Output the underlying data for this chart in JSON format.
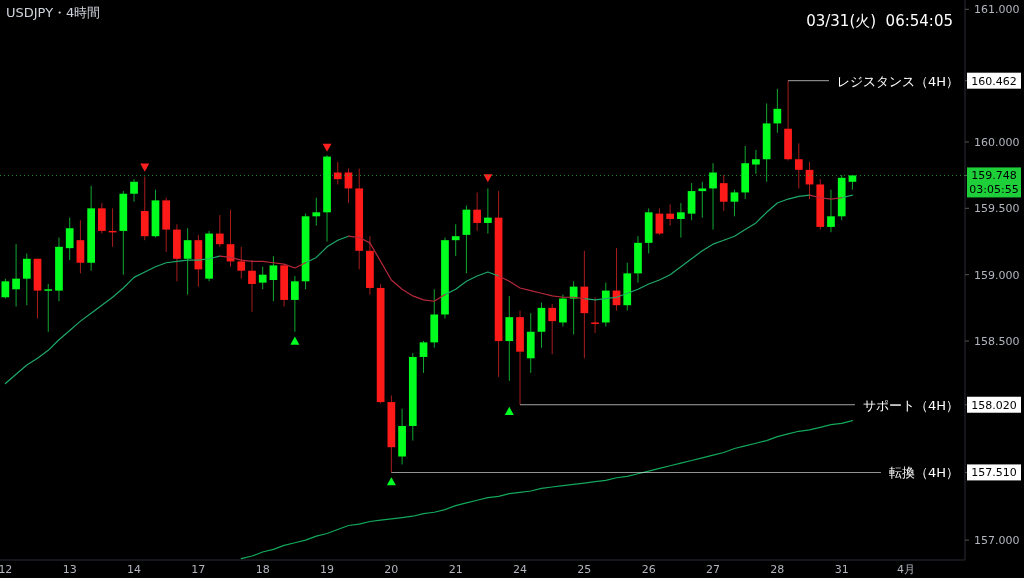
{
  "chart_data": {
    "type": "candlestick",
    "title": "USDJPY・4時間",
    "categories": [
      "12",
      null,
      null,
      null,
      null,
      null,
      "13",
      null,
      null,
      null,
      null,
      null,
      "14",
      null,
      null,
      null,
      null,
      null,
      "17",
      null,
      null,
      null,
      null,
      null,
      "18",
      null,
      null,
      null,
      null,
      null,
      "19",
      null,
      null,
      null,
      null,
      null,
      "20",
      null,
      null,
      null,
      null,
      null,
      "21",
      null,
      null,
      null,
      null,
      null,
      "24",
      null,
      null,
      null,
      null,
      null,
      "25",
      null,
      null,
      null,
      null,
      null,
      "26",
      null,
      null,
      null,
      null,
      null,
      "27",
      null,
      null,
      null,
      null,
      null,
      "28",
      null,
      null,
      null,
      null,
      null,
      "31",
      null,
      null,
      null,
      null,
      null,
      "4月",
      null,
      null,
      null,
      null,
      null
    ],
    "ohlc": [
      [
        158.83,
        158.97,
        158.82,
        158.95
      ],
      [
        158.89,
        159.23,
        158.76,
        158.97
      ],
      [
        158.97,
        159.16,
        158.77,
        159.12
      ],
      [
        159.12,
        159.12,
        158.67,
        158.88
      ],
      [
        158.88,
        158.93,
        158.57,
        158.89
      ],
      [
        158.88,
        159.28,
        158.8,
        159.21
      ],
      [
        159.2,
        159.43,
        159.11,
        159.35
      ],
      [
        159.26,
        159.41,
        159.01,
        159.09
      ],
      [
        159.09,
        159.67,
        159.03,
        159.5
      ],
      [
        159.5,
        159.54,
        159.31,
        159.33
      ],
      [
        159.33,
        159.5,
        159.21,
        159.32
      ],
      [
        159.33,
        159.63,
        159.0,
        159.61
      ],
      [
        159.61,
        159.72,
        159.55,
        159.7
      ],
      [
        159.48,
        159.74,
        159.26,
        159.29
      ],
      [
        159.29,
        159.64,
        159.28,
        159.56
      ],
      [
        159.56,
        159.58,
        159.17,
        159.34
      ],
      [
        159.34,
        159.38,
        158.95,
        159.12
      ],
      [
        159.12,
        159.35,
        158.85,
        159.26
      ],
      [
        159.26,
        159.3,
        158.91,
        159.04
      ],
      [
        158.97,
        159.33,
        158.95,
        159.31
      ],
      [
        159.31,
        159.45,
        159.21,
        159.23
      ],
      [
        159.23,
        159.49,
        159.06,
        159.1
      ],
      [
        159.1,
        159.21,
        158.97,
        159.03
      ],
      [
        159.03,
        159.11,
        158.72,
        158.93
      ],
      [
        158.94,
        159.06,
        158.89,
        159.0
      ],
      [
        158.96,
        159.14,
        158.8,
        159.07
      ],
      [
        159.07,
        159.08,
        158.76,
        158.81
      ],
      [
        158.81,
        158.99,
        158.57,
        158.95
      ],
      [
        158.95,
        159.46,
        158.89,
        159.44
      ],
      [
        159.44,
        159.58,
        159.37,
        159.47
      ],
      [
        159.47,
        159.9,
        159.25,
        159.89
      ],
      [
        159.77,
        159.85,
        159.68,
        159.72
      ],
      [
        159.77,
        159.8,
        159.54,
        159.65
      ],
      [
        159.65,
        159.8,
        159.04,
        159.18
      ],
      [
        159.18,
        159.29,
        158.85,
        158.9
      ],
      [
        158.9,
        158.93,
        158.03,
        158.04
      ],
      [
        158.04,
        158.09,
        157.51,
        157.7
      ],
      [
        157.63,
        157.99,
        157.57,
        157.86
      ],
      [
        157.86,
        158.41,
        157.75,
        158.38
      ],
      [
        158.38,
        158.5,
        158.26,
        158.49
      ],
      [
        158.49,
        158.89,
        158.45,
        158.7
      ],
      [
        158.7,
        159.28,
        158.67,
        159.26
      ],
      [
        159.26,
        159.38,
        159.14,
        159.29
      ],
      [
        159.3,
        159.52,
        159.01,
        159.49
      ],
      [
        159.49,
        159.62,
        159.33,
        159.39
      ],
      [
        159.39,
        159.65,
        159.31,
        159.43
      ],
      [
        159.43,
        159.63,
        158.23,
        158.5
      ],
      [
        158.5,
        158.84,
        158.2,
        158.68
      ],
      [
        158.68,
        158.73,
        158.02,
        158.42
      ],
      [
        158.37,
        158.71,
        158.26,
        158.57
      ],
      [
        158.57,
        158.79,
        158.45,
        158.75
      ],
      [
        158.75,
        158.78,
        158.4,
        158.65
      ],
      [
        158.64,
        158.85,
        158.61,
        158.82
      ],
      [
        158.82,
        158.95,
        158.55,
        158.91
      ],
      [
        158.91,
        159.18,
        158.37,
        158.71
      ],
      [
        158.64,
        158.83,
        158.56,
        158.63
      ],
      [
        158.64,
        158.94,
        158.61,
        158.88
      ],
      [
        158.88,
        159.2,
        158.73,
        158.77
      ],
      [
        158.77,
        159.09,
        158.73,
        159.01
      ],
      [
        159.01,
        159.29,
        158.94,
        159.24
      ],
      [
        159.24,
        159.5,
        159.16,
        159.47
      ],
      [
        159.46,
        159.5,
        159.3,
        159.31
      ],
      [
        159.46,
        159.53,
        159.37,
        159.42
      ],
      [
        159.42,
        159.54,
        159.28,
        159.47
      ],
      [
        159.46,
        159.69,
        159.41,
        159.63
      ],
      [
        159.63,
        159.7,
        159.43,
        159.65
      ],
      [
        159.65,
        159.84,
        159.34,
        159.77
      ],
      [
        159.69,
        159.75,
        159.48,
        159.55
      ],
      [
        159.55,
        159.64,
        159.44,
        159.62
      ],
      [
        159.62,
        159.97,
        159.57,
        159.84
      ],
      [
        159.83,
        159.94,
        159.76,
        159.87
      ],
      [
        159.87,
        160.29,
        159.7,
        160.14
      ],
      [
        160.14,
        160.4,
        160.07,
        160.25
      ],
      [
        160.1,
        160.462,
        159.86,
        159.87
      ],
      [
        159.87,
        159.99,
        159.65,
        159.79
      ],
      [
        159.79,
        159.85,
        159.57,
        159.68
      ],
      [
        159.68,
        159.72,
        159.34,
        159.36
      ],
      [
        159.36,
        159.64,
        159.32,
        159.44
      ],
      [
        159.44,
        159.75,
        159.41,
        159.73
      ],
      [
        159.7,
        159.75,
        159.64,
        159.748
      ],
      null,
      null,
      null,
      null,
      null,
      null,
      null,
      null,
      null,
      null
    ],
    "series": [
      {
        "type": "line",
        "color": "#1ea86a",
        "values": [
          158.18,
          158.25,
          158.32,
          158.37,
          158.43,
          158.51,
          158.58,
          158.65,
          158.71,
          158.77,
          158.83,
          158.9,
          158.98,
          159.02,
          159.06,
          159.09,
          159.1,
          159.11,
          159.11,
          159.12,
          159.14,
          null,
          null,
          null,
          null,
          null,
          null,
          null,
          159.09,
          159.13,
          159.21,
          159.26,
          159.29,
          null,
          null,
          null,
          null,
          null,
          null,
          null,
          null,
          158.85,
          158.89,
          158.95,
          158.99,
          159.02,
          158.99,
          null,
          null,
          null,
          null,
          null,
          null,
          null,
          158.82,
          158.81,
          158.82,
          158.83,
          158.86,
          158.89,
          158.93,
          158.96,
          159.0,
          159.06,
          159.12,
          159.18,
          159.23,
          159.26,
          159.29,
          159.34,
          159.39,
          159.47,
          159.54,
          159.57,
          159.59,
          159.6,
          null,
          null,
          159.58,
          159.6,
          null,
          null,
          null,
          null,
          null,
          null,
          null,
          null,
          null,
          null
        ]
      },
      {
        "type": "line",
        "color": "#b5283a",
        "values": [
          null,
          null,
          null,
          null,
          null,
          null,
          null,
          null,
          null,
          null,
          null,
          null,
          null,
          null,
          null,
          null,
          null,
          null,
          null,
          null,
          159.14,
          159.13,
          159.11,
          159.1,
          159.1,
          159.09,
          159.08,
          159.05,
          159.09,
          null,
          null,
          null,
          159.29,
          159.28,
          159.24,
          159.1,
          158.96,
          158.89,
          158.84,
          158.81,
          158.8,
          158.85,
          null,
          null,
          null,
          null,
          158.99,
          158.95,
          158.9,
          158.88,
          158.86,
          158.84,
          158.83,
          158.83,
          158.82,
          null,
          null,
          null,
          null,
          null,
          null,
          null,
          null,
          null,
          null,
          null,
          null,
          null,
          null,
          null,
          null,
          null,
          null,
          null,
          null,
          159.6,
          159.58,
          159.57,
          159.58,
          null,
          null,
          null,
          null,
          null,
          null,
          null,
          null,
          null,
          null,
          null
        ]
      },
      {
        "type": "line",
        "color": "#13a85a",
        "values": [
          null,
          null,
          null,
          null,
          null,
          null,
          null,
          null,
          null,
          null,
          null,
          null,
          null,
          null,
          null,
          null,
          null,
          null,
          null,
          null,
          null,
          null,
          156.86,
          156.88,
          156.91,
          156.93,
          156.96,
          156.98,
          157.0,
          157.03,
          157.05,
          157.08,
          157.11,
          157.12,
          157.14,
          157.15,
          157.16,
          157.17,
          157.18,
          157.2,
          157.21,
          157.23,
          157.26,
          157.28,
          157.3,
          157.32,
          157.33,
          157.35,
          157.36,
          157.37,
          157.39,
          157.4,
          157.41,
          157.42,
          157.43,
          157.44,
          157.45,
          157.47,
          157.48,
          157.5,
          157.52,
          157.54,
          157.56,
          157.58,
          157.6,
          157.62,
          157.64,
          157.66,
          157.69,
          157.71,
          157.73,
          157.75,
          157.78,
          157.8,
          157.82,
          157.83,
          157.85,
          157.87,
          157.88,
          157.9,
          null,
          null,
          null,
          null,
          null,
          null,
          null,
          null,
          null,
          null
        ]
      },
      {
        "type": "scatter",
        "color": "#ff2020",
        "marker": "triangle_down",
        "values": [
          null,
          null,
          null,
          null,
          null,
          null,
          null,
          null,
          null,
          null,
          null,
          null,
          null,
          159.81,
          null,
          null,
          null,
          null,
          null,
          null,
          null,
          null,
          null,
          null,
          null,
          null,
          null,
          null,
          null,
          null,
          159.96,
          null,
          null,
          null,
          null,
          null,
          null,
          null,
          null,
          null,
          null,
          null,
          null,
          null,
          null,
          159.73,
          null,
          null,
          null,
          null,
          null,
          null,
          null,
          null,
          null,
          null,
          null,
          null,
          null,
          null,
          null,
          null,
          null,
          null,
          null,
          null,
          null,
          null,
          null,
          null,
          null,
          null,
          null,
          null,
          null,
          null,
          null,
          null,
          null,
          null,
          null,
          null,
          null,
          null,
          null,
          null,
          null,
          null,
          null,
          null
        ]
      },
      {
        "type": "scatter",
        "color": "#00ff22",
        "marker": "triangle",
        "values": [
          null,
          null,
          null,
          null,
          null,
          null,
          null,
          null,
          null,
          null,
          null,
          null,
          null,
          null,
          null,
          null,
          null,
          null,
          null,
          null,
          null,
          null,
          null,
          null,
          null,
          null,
          null,
          158.5,
          null,
          null,
          null,
          null,
          null,
          null,
          null,
          null,
          157.44,
          null,
          null,
          null,
          null,
          null,
          null,
          null,
          null,
          null,
          null,
          157.97,
          null,
          null,
          null,
          null,
          null,
          null,
          null,
          null,
          null,
          null,
          null,
          null,
          null,
          null,
          null,
          null,
          null,
          null,
          null,
          null,
          null,
          null,
          null,
          null,
          null,
          null,
          null,
          null,
          null,
          null,
          null,
          null,
          null,
          null,
          null,
          null,
          null,
          null,
          null,
          null,
          null,
          null
        ]
      }
    ],
    "ylim": [
      156.85,
      161.07
    ],
    "yticks": [
      {
        "value": 157,
        "label": "157.000"
      },
      {
        "value": 157.51,
        "label": "157.510"
      },
      {
        "value": 158.02,
        "label": "158.020"
      },
      {
        "value": 159.748,
        "label": "159.748"
      },
      {
        "value": 160.462,
        "label": "160.462"
      },
      {
        "value": 158.5,
        "label": "158.500"
      },
      {
        "value": 159,
        "label": "159.000"
      },
      {
        "value": 159.5,
        "label": "159.500"
      },
      {
        "value": 160,
        "label": "160.000"
      },
      {
        "value": 161,
        "label": "161.000"
      }
    ],
    "ref_lines": [
      {
        "axis": "y",
        "value": 160.462,
        "label": "レジスタンス（4H）",
        "color": "#ffffff"
      },
      {
        "axis": "y",
        "value": 158.02,
        "label": "サポート（4H）",
        "color": "#ffffff"
      },
      {
        "axis": "y",
        "value": 157.51,
        "label": "転換（4H）",
        "color": "#ffffff"
      },
      {
        "axis": "y",
        "value": 159.748,
        "label": null,
        "color": "#1fcf3a",
        "line_style": "dotted"
      }
    ],
    "annotations": [
      "03/31(火)  06:54:05",
      "03:05:55"
    ]
  }
}
